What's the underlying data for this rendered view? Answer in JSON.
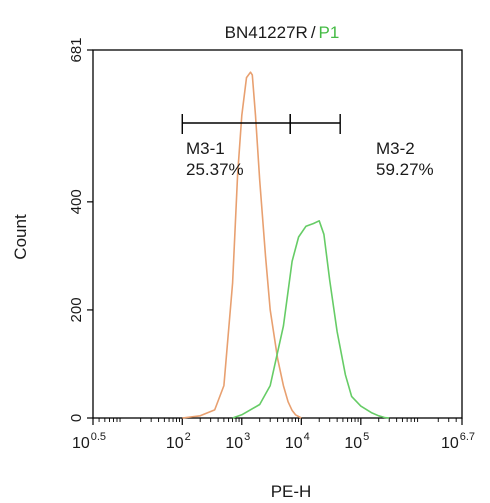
{
  "chart_data": {
    "type": "line",
    "title": "BN41227R",
    "title_separator": "/",
    "subtitle": "P1",
    "xlabel": "PE-H",
    "ylabel": "Count",
    "x_scale": "log",
    "xlim": [
      3.1623,
      5011872
    ],
    "ylim": [
      0,
      681
    ],
    "x_ticks": [
      {
        "base": "10",
        "exp": "0.5",
        "value": 3.1623
      },
      {
        "base": "10",
        "exp": "2",
        "value": 100
      },
      {
        "base": "10",
        "exp": "3",
        "value": 1000
      },
      {
        "base": "10",
        "exp": "4",
        "value": 10000
      },
      {
        "base": "10",
        "exp": "5",
        "value": 100000
      },
      {
        "base": "10",
        "exp": "6.7",
        "value": 5011872
      }
    ],
    "y_ticks": [
      "0",
      "200",
      "400",
      "681"
    ],
    "y_tick_values": [
      0,
      200,
      400,
      681
    ],
    "colors": {
      "control": "#E8A070",
      "sample": "#66CC66",
      "axis": "#000000",
      "text": "#1a1a1a",
      "subtitle": "#44BB44"
    },
    "series": [
      {
        "key": "control",
        "x": [
          100,
          200,
          350,
          500,
          700,
          850,
          1000,
          1200,
          1400,
          1500,
          1700,
          2000,
          2500,
          3000,
          4000,
          5000,
          6000,
          7000,
          8000,
          10000
        ],
        "y": [
          0,
          4,
          15,
          60,
          250,
          450,
          560,
          630,
          640,
          635,
          560,
          440,
          300,
          200,
          110,
          60,
          30,
          14,
          6,
          0
        ]
      },
      {
        "key": "sample",
        "x": [
          700,
          1000,
          2000,
          3000,
          5000,
          7000,
          9000,
          12000,
          16000,
          20000,
          24000,
          30000,
          40000,
          55000,
          70000,
          100000,
          150000,
          200000,
          250000,
          300000
        ],
        "y": [
          0,
          6,
          25,
          60,
          170,
          290,
          335,
          355,
          360,
          365,
          340,
          255,
          160,
          80,
          40,
          22,
          10,
          4,
          1,
          0
        ]
      }
    ],
    "gates": [
      {
        "label": "M3-1",
        "percent": "25.37%",
        "x_start": 100,
        "x_end": 6500
      },
      {
        "label": "M3-2",
        "percent": "59.27%",
        "x_start": 6500,
        "x_end": 45000
      }
    ]
  }
}
